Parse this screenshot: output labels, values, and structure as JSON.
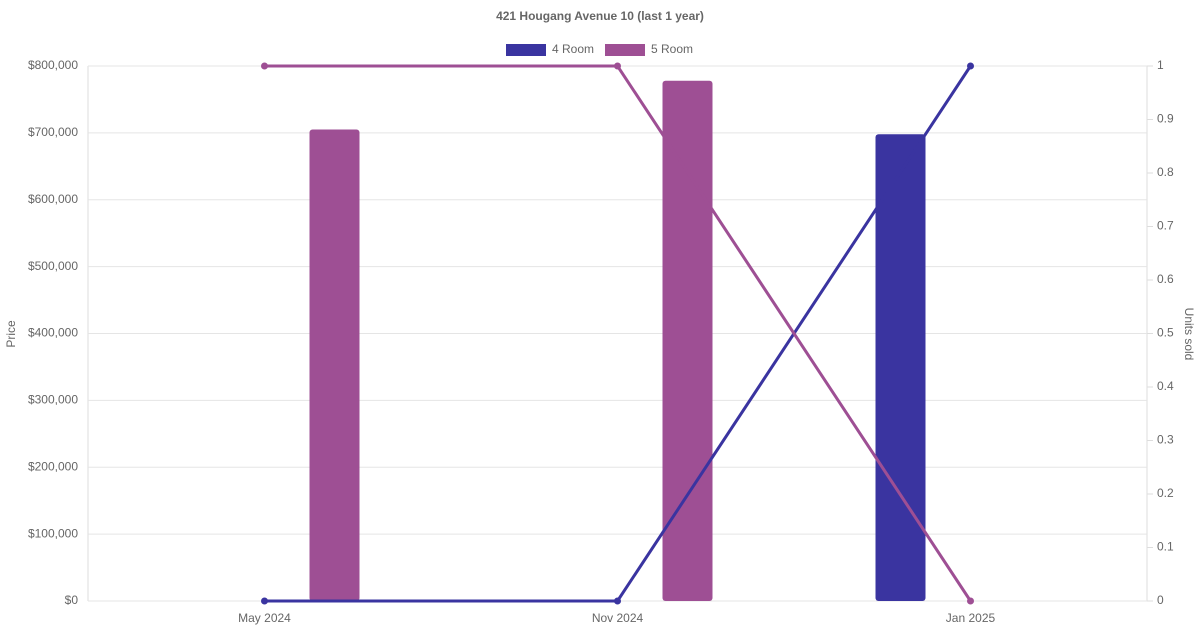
{
  "chart_data": {
    "type": "bar-line",
    "title": "421 Hougang Avenue 10 (last 1 year)",
    "y_label": "Price",
    "y2_label": "Units sold",
    "categories": [
      "May 2024",
      "Nov 2024",
      "Jan 2025"
    ],
    "series": [
      {
        "name": "4 Room",
        "color": "#3a34a0",
        "values": [
          null,
          null,
          698000
        ],
        "units_sold": [
          0,
          0,
          1
        ]
      },
      {
        "name": "5 Room",
        "color": "#9e4f94",
        "values": [
          705000,
          778000,
          null
        ],
        "units_sold": [
          1,
          1,
          0
        ]
      }
    ],
    "ylim": [
      0,
      800000
    ],
    "yticks": [
      {
        "value": 0,
        "label": "$0"
      },
      {
        "value": 100000,
        "label": "$100,000"
      },
      {
        "value": 200000,
        "label": "$200,000"
      },
      {
        "value": 300000,
        "label": "$300,000"
      },
      {
        "value": 400000,
        "label": "$400,000"
      },
      {
        "value": 500000,
        "label": "$500,000"
      },
      {
        "value": 600000,
        "label": "$600,000"
      },
      {
        "value": 700000,
        "label": "$700,000"
      },
      {
        "value": 800000,
        "label": "$800,000"
      }
    ],
    "y2lim": [
      0,
      1
    ],
    "y2ticks": [
      0,
      0.1,
      0.2,
      0.3,
      0.4,
      0.5,
      0.6,
      0.7,
      0.8,
      0.9,
      1
    ],
    "grid": true
  }
}
